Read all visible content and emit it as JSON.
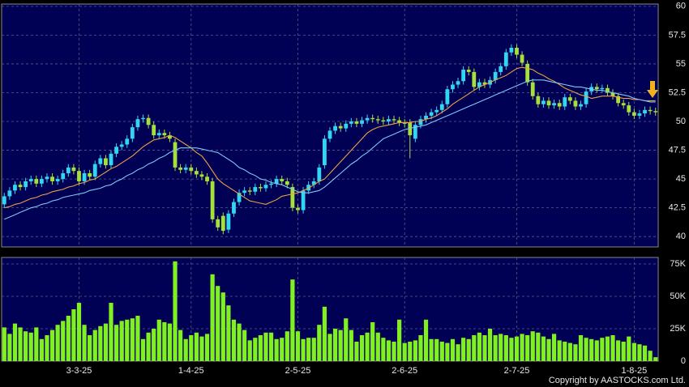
{
  "chart_data": [
    {
      "type": "candlestick",
      "categories": [
        null,
        null,
        null,
        null,
        null,
        null,
        null,
        null,
        null,
        null,
        null,
        null,
        null,
        null,
        "3-3-25",
        null,
        null,
        null,
        null,
        null,
        null,
        null,
        null,
        null,
        null,
        null,
        null,
        null,
        null,
        null,
        null,
        null,
        null,
        null,
        null,
        "1-4-25",
        null,
        null,
        null,
        null,
        null,
        null,
        null,
        null,
        null,
        null,
        null,
        null,
        null,
        null,
        null,
        null,
        null,
        null,
        null,
        "2-5-25",
        null,
        null,
        null,
        null,
        null,
        null,
        null,
        null,
        null,
        null,
        null,
        null,
        null,
        null,
        null,
        null,
        null,
        null,
        null,
        "2-6-25",
        null,
        null,
        null,
        null,
        null,
        null,
        null,
        null,
        null,
        null,
        null,
        null,
        null,
        null,
        null,
        null,
        null,
        null,
        null,
        null,
        "2-7-25",
        null,
        null,
        null,
        null,
        null,
        null,
        null,
        null,
        null,
        null,
        null,
        null,
        null,
        null,
        null,
        null,
        null,
        null,
        null,
        null,
        null,
        "1-8-25",
        null,
        null,
        null,
        null
      ],
      "open": [
        42.8,
        43.5,
        44,
        44.5,
        44.3,
        44.8,
        45,
        44.6,
        45,
        45.2,
        44.8,
        45,
        45.5,
        46,
        45.7,
        44.8,
        45.5,
        45.2,
        46.3,
        46.8,
        46.2,
        47.2,
        47.8,
        48,
        48.5,
        49.5,
        50.2,
        50.3,
        49.7,
        48.8,
        49,
        48.8,
        48.2,
        46,
        45.8,
        46,
        45.7,
        45.4,
        45.2,
        44.8,
        41.5,
        41.8,
        40.6,
        42,
        43,
        43.8,
        44,
        43.9,
        44.3,
        44.2,
        44.5,
        44.6,
        45,
        44.8,
        44.3,
        42.5,
        42.3,
        44,
        44.5,
        44.8,
        46.2,
        48.5,
        49.2,
        49.6,
        49.4,
        49.8,
        50,
        49.8,
        50.1,
        50.3,
        50.2,
        50.1,
        50,
        50.2,
        50.1,
        49.9,
        49.9,
        48.5,
        49.7,
        50.2,
        50.5,
        50.8,
        51,
        51.5,
        52.8,
        53.2,
        53.5,
        54.5,
        54.3,
        53,
        53.4,
        53.2,
        53.6,
        54.3,
        54.8,
        56,
        56.4,
        55.8,
        55,
        53.4,
        52.2,
        51.5,
        51.8,
        51.4,
        51.6,
        51.3,
        52.1,
        51.8,
        51.3,
        51.5,
        52.6,
        53,
        52.8,
        52.9,
        52.5,
        52.2,
        51.6,
        51.4,
        50.8,
        50.5,
        50.7,
        51,
        50.9
      ],
      "high": [
        43.8,
        44.3,
        44.8,
        44.8,
        45.1,
        45.3,
        45.3,
        45.3,
        45.5,
        45.5,
        45.3,
        45.8,
        46.3,
        46.3,
        46,
        45.8,
        45.8,
        46.6,
        47.1,
        47.1,
        47.5,
        48.1,
        48.3,
        48.8,
        49.8,
        50.5,
        50.6,
        50.6,
        50,
        49.3,
        49.3,
        49.1,
        48.5,
        46.3,
        46.3,
        46.3,
        46,
        45.7,
        45.5,
        45.1,
        41.8,
        42.1,
        42.3,
        43.3,
        44.1,
        44.3,
        44.3,
        44.6,
        44.6,
        44.8,
        44.9,
        45.3,
        45.3,
        45.1,
        44.6,
        42.8,
        44.3,
        44.8,
        45.1,
        46.3,
        48.8,
        49.5,
        49.9,
        49.9,
        50.1,
        50.3,
        50.3,
        50.4,
        50.6,
        50.6,
        50.5,
        50.4,
        50.5,
        50.5,
        50.4,
        50.2,
        50.2,
        50,
        50.5,
        50.8,
        51.1,
        51.3,
        51.8,
        53.1,
        53.5,
        53.8,
        54.8,
        54.8,
        54.6,
        53.7,
        53.7,
        53.9,
        54.6,
        55.1,
        56.3,
        56.7,
        56.7,
        56.1,
        55.3,
        53.7,
        52.5,
        52.1,
        52.1,
        51.9,
        51.9,
        52.4,
        52.4,
        52.1,
        51.8,
        52.9,
        53.3,
        53.3,
        53.2,
        53.2,
        52.8,
        52.5,
        51.9,
        51.7,
        51.1,
        51,
        51.3,
        51.3,
        51.2
      ],
      "low": [
        42.5,
        43.2,
        43.7,
        44,
        44,
        44.5,
        44.3,
        44.3,
        44.7,
        44.5,
        44.5,
        44.7,
        45.2,
        45.4,
        44.5,
        44.5,
        44.9,
        44.9,
        46,
        45.9,
        45.9,
        46.9,
        47.5,
        47.7,
        48.2,
        49.2,
        49.9,
        49.4,
        48.5,
        48.5,
        48.5,
        48.2,
        45.7,
        45.5,
        45.5,
        45.4,
        45.1,
        44.9,
        44.5,
        41.2,
        40.5,
        40.2,
        40.3,
        41.7,
        42.7,
        43.5,
        43.6,
        43.6,
        43.9,
        43.9,
        44.2,
        44.3,
        44.5,
        44.2,
        42.2,
        42,
        42,
        43.7,
        44.2,
        44.5,
        45.9,
        48.2,
        48.9,
        49.1,
        49.1,
        49.5,
        49.5,
        49.5,
        49.8,
        49.9,
        49.8,
        49.7,
        49.7,
        49.8,
        49.6,
        49.5,
        46.8,
        48.2,
        49.4,
        49.9,
        50.2,
        50.5,
        50.7,
        51.2,
        52.5,
        52.9,
        53.2,
        54,
        52.7,
        52.7,
        52.9,
        52.9,
        53.3,
        54,
        54.5,
        55.7,
        55.5,
        54.8,
        53.1,
        51.9,
        51.2,
        51.2,
        51.1,
        51.1,
        51,
        51,
        51.5,
        51,
        51,
        51.2,
        52.3,
        52.5,
        52.5,
        52.2,
        51.9,
        51.3,
        51.1,
        50.5,
        50.2,
        50.2,
        50.4,
        50.6,
        50.5
      ],
      "close": [
        43.5,
        44,
        44.5,
        44.3,
        44.8,
        45,
        44.6,
        45,
        45.2,
        44.8,
        45,
        45.5,
        46,
        45.7,
        44.8,
        45.5,
        45.2,
        46.3,
        46.8,
        46.2,
        47.2,
        47.8,
        48,
        48.5,
        49.5,
        50.2,
        50.3,
        49.7,
        48.8,
        49,
        48.8,
        48.5,
        46,
        45.8,
        46,
        45.7,
        45.4,
        45.2,
        44.8,
        41.5,
        40.8,
        40.5,
        42,
        43,
        43.8,
        44,
        43.9,
        44.3,
        44.2,
        44.5,
        44.6,
        45,
        44.8,
        44.5,
        42.5,
        42.3,
        44,
        44.5,
        44.8,
        46,
        48.5,
        49.2,
        49.6,
        49.4,
        49.8,
        50,
        49.8,
        50.1,
        50.3,
        50.2,
        50.1,
        50,
        50.2,
        50.1,
        49.9,
        49.8,
        48.8,
        49.7,
        50.2,
        50.5,
        50.8,
        51,
        51.5,
        52.8,
        53.2,
        53.5,
        54.5,
        54.3,
        53,
        53.4,
        53.2,
        53.6,
        54.3,
        54.8,
        56,
        56.4,
        55.8,
        55.1,
        53.4,
        52.2,
        51.5,
        51.8,
        51.4,
        51.6,
        51.3,
        52.1,
        51.8,
        51.3,
        51.5,
        52.6,
        53,
        52.8,
        52.9,
        52.5,
        52.2,
        51.6,
        51.4,
        50.8,
        50.5,
        50.7,
        51,
        50.9,
        50.8
      ],
      "up_color": "#33d6f0",
      "down_color": "#a6e03a",
      "lines": [
        {
          "color": "#f0a040",
          "values": [
            42.5,
            42.6,
            42.8,
            42.9,
            43.1,
            43.3,
            43.4,
            43.6,
            43.7,
            43.9,
            44,
            44.1,
            44.3,
            44.4,
            44.6,
            44.7,
            44.9,
            45,
            45.3,
            45.6,
            45.9,
            46.1,
            46.4,
            46.7,
            47,
            47.4,
            47.8,
            48.1,
            48.4,
            48.5,
            48.6,
            48.8,
            48.6,
            48.3,
            48,
            47.7,
            47.3,
            47,
            46.4,
            45.7,
            45,
            44.6,
            44.3,
            44,
            43.7,
            43.4,
            43.1,
            43,
            42.9,
            42.8,
            43,
            43.2,
            43.5,
            43.6,
            43.7,
            43.8,
            44,
            44.2,
            44.5,
            44.8,
            45,
            45.5,
            46,
            46.5,
            47,
            47.5,
            48,
            48.5,
            49,
            49.3,
            49.5,
            49.6,
            49.7,
            49.8,
            49.9,
            49.9,
            49.9,
            50,
            50,
            50.2,
            50.3,
            50.5,
            50.8,
            51.1,
            51.5,
            51.8,
            52.1,
            52.4,
            52.7,
            53,
            53.2,
            53.4,
            53.6,
            53.8,
            54,
            54.3,
            54.6,
            54.7,
            54.6,
            54.5,
            54.2,
            54,
            53.7,
            53.5,
            53.2,
            52.9,
            52.7,
            52.5,
            52.3,
            52.2,
            52,
            52.1,
            52.2,
            52.2,
            52.2,
            52.1,
            52,
            52,
            51.9,
            51.9,
            51.8,
            51.8,
            51.8
          ]
        },
        {
          "color": "#7ec8f0",
          "values": [
            41.5,
            41.7,
            41.9,
            42.1,
            42.3,
            42.5,
            42.6,
            42.8,
            42.9,
            43.1,
            43.2,
            43.4,
            43.5,
            43.6,
            43.7,
            43.8,
            44,
            44.1,
            44.2,
            44.4,
            44.5,
            44.8,
            45,
            45.3,
            45.5,
            45.8,
            46,
            46.3,
            46.5,
            46.8,
            47,
            47.3,
            47.5,
            47.7,
            47.7,
            47.7,
            47.7,
            47.6,
            47.5,
            47.4,
            47.3,
            47,
            46.7,
            46.4,
            46,
            45.8,
            45.5,
            45.3,
            45,
            44.9,
            44.7,
            44.6,
            44.5,
            44.3,
            44.1,
            43.9,
            43.8,
            43.8,
            43.9,
            44,
            44.3,
            44.7,
            45.1,
            45.5,
            45.9,
            46.3,
            46.6,
            47,
            47.3,
            47.7,
            48.1,
            48.5,
            48.7,
            48.9,
            49.1,
            49.3,
            49.4,
            49.5,
            49.6,
            49.7,
            49.9,
            50.1,
            50.3,
            50.5,
            50.7,
            50.9,
            51.1,
            51.3,
            51.5,
            51.7,
            51.9,
            52.1,
            52.3,
            52.5,
            52.7,
            52.9,
            53.1,
            53.3,
            53.5,
            53.6,
            53.6,
            53.6,
            53.5,
            53.4,
            53.3,
            53.2,
            53.1,
            53,
            53,
            52.9,
            52.8,
            52.7,
            52.7,
            52.6,
            52.5,
            52.4,
            52.3,
            52.2,
            52,
            51.9,
            51.8,
            51.7,
            51.7
          ]
        }
      ],
      "ylim": [
        39.1,
        60.2
      ],
      "yticks": [
        40,
        42.5,
        45,
        47.5,
        50,
        52.5,
        55,
        57.5,
        60
      ],
      "grid": true
    },
    {
      "type": "bar",
      "values": [
        26000,
        21000,
        29000,
        26000,
        23000,
        22000,
        26000,
        17000,
        20000,
        24000,
        28000,
        31000,
        35000,
        40000,
        45000,
        28000,
        20000,
        24000,
        27000,
        29000,
        45000,
        28000,
        31000,
        32000,
        33000,
        35000,
        17000,
        22000,
        25000,
        32000,
        30000,
        29000,
        77000,
        24000,
        17000,
        20000,
        22000,
        19000,
        21000,
        67000,
        58000,
        53000,
        43000,
        32000,
        29000,
        24000,
        16000,
        18000,
        20000,
        22000,
        22000,
        17000,
        18000,
        23000,
        63000,
        23000,
        17000,
        18000,
        18000,
        28000,
        42000,
        21000,
        25000,
        24000,
        33000,
        24000,
        15000,
        20000,
        22000,
        30000,
        22000,
        18000,
        16000,
        15000,
        32000,
        14000,
        15000,
        16000,
        20000,
        32000,
        17000,
        17000,
        15000,
        14000,
        17000,
        13000,
        18000,
        17000,
        20000,
        22000,
        20000,
        25000,
        20000,
        21000,
        20000,
        18000,
        19000,
        21000,
        20000,
        23000,
        22000,
        19000,
        17000,
        21000,
        16000,
        15000,
        14000,
        13000,
        20000,
        18000,
        17000,
        16000,
        18000,
        19000,
        20000,
        16000,
        15000,
        19000,
        14000,
        13000,
        12000,
        8000,
        3000
      ],
      "color": "#80f020",
      "ylim": [
        0,
        80000
      ],
      "yticks": [
        0,
        {
          "value": 25000,
          "label": "25K"
        },
        {
          "value": 50000,
          "label": "50K"
        },
        {
          "value": 75000,
          "label": "75K"
        }
      ],
      "grid": true
    }
  ],
  "footer": {
    "copyright": "Copyright by AASTOCKS.com Ltd."
  }
}
